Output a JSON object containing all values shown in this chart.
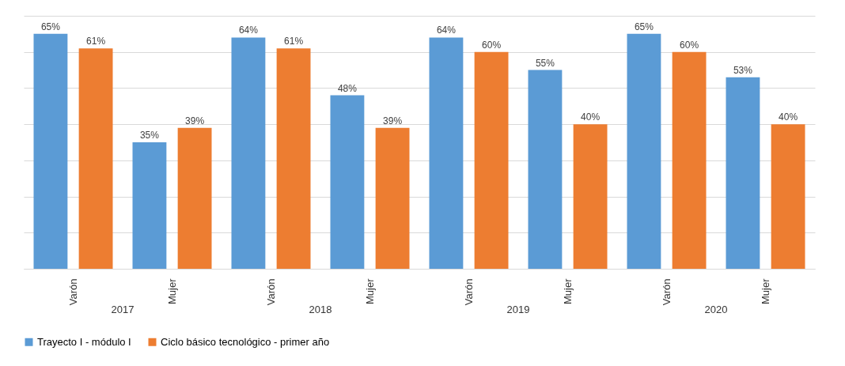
{
  "chart_data": {
    "type": "bar",
    "categories": [
      "Varón",
      "Mujer",
      "Varón",
      "Mujer",
      "Varón",
      "Mujer",
      "Varón",
      "Mujer"
    ],
    "series": [
      {
        "name": "Trayecto I - módulo I",
        "color": "#5b9bd5",
        "values": [
          65,
          35,
          64,
          48,
          64,
          55,
          65,
          53
        ],
        "value_labels": [
          "65%",
          "35%",
          "64%",
          "48%",
          "64%",
          "55%",
          "65%",
          "53%"
        ]
      },
      {
        "name": "Ciclo básico tecnológico - primer año",
        "color": "#ed7d31",
        "values": [
          61,
          39,
          61,
          39,
          60,
          40,
          60,
          40
        ],
        "value_labels": [
          "61%",
          "39%",
          "61%",
          "39%",
          "60%",
          "40%",
          "60%",
          "40%"
        ]
      }
    ],
    "annotations": [
      "2017",
      "2018",
      "2019",
      "2020"
    ],
    "ylim": [
      0,
      70
    ],
    "yticks": [
      {
        "value": 0,
        "label": null
      },
      {
        "value": 10,
        "label": null
      },
      {
        "value": 20,
        "label": null
      },
      {
        "value": 30,
        "label": null
      },
      {
        "value": 40,
        "label": null
      },
      {
        "value": 50,
        "label": null
      },
      {
        "value": 60,
        "label": null
      },
      {
        "value": 70,
        "label": null
      }
    ],
    "grid": "y",
    "tick_labels": "x",
    "legend": "bottom"
  }
}
